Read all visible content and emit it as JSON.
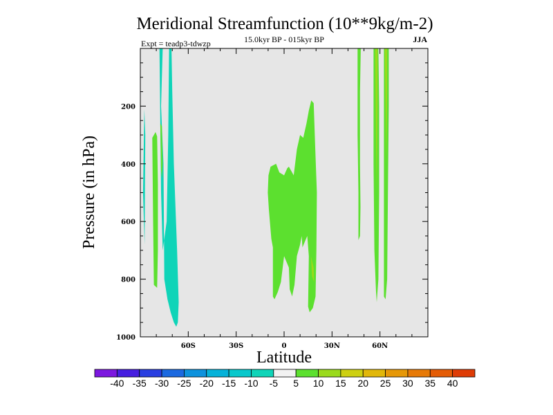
{
  "chart_data": {
    "type": "contour",
    "title": "Meridional Streamfunction (10**9kg/m-2)",
    "subtitle": "15.0kyr BP - 015kyr BP",
    "expt_label": "Expt = teadp3-tdwzp",
    "season": "JJA",
    "xlabel": "Latitude",
    "ylabel": "Pressure (in hPa)",
    "xlim": [
      -90,
      90
    ],
    "ylim": [
      1000,
      0
    ],
    "x_ticks": [
      {
        "value": -60,
        "label": "60S"
      },
      {
        "value": -30,
        "label": "30S"
      },
      {
        "value": 0,
        "label": "0"
      },
      {
        "value": 30,
        "label": "30N"
      },
      {
        "value": 60,
        "label": "60N"
      }
    ],
    "y_ticks": [
      {
        "value": 200,
        "label": "200"
      },
      {
        "value": 400,
        "label": "400"
      },
      {
        "value": 600,
        "label": "600"
      },
      {
        "value": 800,
        "label": "800"
      },
      {
        "value": 1000,
        "label": "1000"
      }
    ],
    "background_color": "#e6e6e6",
    "regions": [
      {
        "name": "sh-polar-strip",
        "level": "-10",
        "color": "#0fd4b8",
        "points": [
          [
            -88.3,
            500
          ],
          [
            -87.5,
            210
          ],
          [
            -86.9,
            300
          ],
          [
            -87.3,
            680
          ]
        ]
      },
      {
        "name": "sh-cell-a",
        "level": "-10",
        "color": "#0fd4b8",
        "points": [
          [
            -78,
            0
          ],
          [
            -76,
            0
          ],
          [
            -77,
            200
          ],
          [
            -75.5,
            400
          ],
          [
            -75,
            800
          ],
          [
            -73,
            870
          ],
          [
            -71,
            915
          ],
          [
            -69,
            950
          ],
          [
            -67.5,
            965
          ],
          [
            -66.5,
            950
          ],
          [
            -66,
            880
          ],
          [
            -67,
            700
          ],
          [
            -69,
            400
          ],
          [
            -70,
            150
          ],
          [
            -70.5,
            0
          ],
          [
            -72,
            0
          ],
          [
            -72.5,
            300
          ],
          [
            -73.5,
            600
          ],
          [
            -76,
            700
          ],
          [
            -77,
            500
          ]
        ]
      },
      {
        "name": "sh-cell-b",
        "level": "5",
        "color": "#5ce02f",
        "points": [
          [
            -82.5,
            310
          ],
          [
            -80.5,
            290
          ],
          [
            -79.5,
            305
          ],
          [
            -79,
            470
          ],
          [
            -79,
            700
          ],
          [
            -79.5,
            830
          ],
          [
            -81.5,
            820
          ],
          [
            -82,
            600
          ]
        ]
      },
      {
        "name": "sh-cell-c",
        "level": "5",
        "color": "#5ce02f",
        "points": [
          [
            -77.5,
            260
          ],
          [
            -76.5,
            270
          ],
          [
            -76,
            400
          ],
          [
            -76.5,
            450
          ],
          [
            -77,
            420
          ]
        ]
      },
      {
        "name": "eq-cell",
        "level": "5",
        "color": "#5ce02f",
        "points": [
          [
            -9.8,
            440
          ],
          [
            -8.5,
            410
          ],
          [
            -5,
            400
          ],
          [
            -3,
            430
          ],
          [
            0,
            440
          ],
          [
            2,
            415
          ],
          [
            3,
            410
          ],
          [
            6,
            440
          ],
          [
            8,
            350
          ],
          [
            10,
            300
          ],
          [
            12,
            310
          ],
          [
            14,
            260
          ],
          [
            15.5,
            215
          ],
          [
            17,
            180
          ],
          [
            18.5,
            190
          ],
          [
            19.5,
            350
          ],
          [
            20.5,
            500
          ],
          [
            20.2,
            700
          ],
          [
            19.7,
            860
          ],
          [
            18,
            900
          ],
          [
            16,
            915
          ],
          [
            15,
            895
          ],
          [
            15.5,
            720
          ],
          [
            14.5,
            650
          ],
          [
            13,
            670
          ],
          [
            11.5,
            690
          ],
          [
            11,
            650
          ],
          [
            10,
            680
          ],
          [
            8,
            720
          ],
          [
            6.5,
            820
          ],
          [
            5,
            860
          ],
          [
            3.5,
            835
          ],
          [
            3,
            760
          ],
          [
            0,
            720
          ],
          [
            -2,
            810
          ],
          [
            -4,
            845
          ],
          [
            -6,
            870
          ],
          [
            -7,
            860
          ],
          [
            -7,
            690
          ],
          [
            -8,
            660
          ],
          [
            -9.5,
            560
          ],
          [
            -10.2,
            500
          ]
        ]
      },
      {
        "name": "eq-cell-yellow",
        "level": "10",
        "color": "#9ada1c",
        "points": [
          [
            16.8,
            720
          ],
          [
            18.5,
            760
          ],
          [
            18.8,
            810
          ],
          [
            17.5,
            790
          ]
        ]
      },
      {
        "name": "nh-strip-a",
        "level": "5",
        "color": "#5ce02f",
        "points": [
          [
            46,
            0
          ],
          [
            48,
            0
          ],
          [
            47.5,
            150
          ],
          [
            47.5,
            400
          ],
          [
            47.8,
            550
          ],
          [
            47.5,
            650
          ],
          [
            46.5,
            665
          ],
          [
            46.5,
            500
          ],
          [
            46,
            300
          ]
        ]
      },
      {
        "name": "nh-strip-b",
        "level": "5",
        "color": "#5ce02f",
        "points": [
          [
            56,
            0
          ],
          [
            59,
            0
          ],
          [
            59.5,
            200
          ],
          [
            59.5,
            500
          ],
          [
            59,
            800
          ],
          [
            58,
            880
          ],
          [
            57.5,
            840
          ],
          [
            56.5,
            700
          ],
          [
            56,
            400
          ]
        ]
      },
      {
        "name": "nh-strip-b-yellow",
        "level": "10",
        "color": "#9ada1c",
        "points": [
          [
            57,
            0
          ],
          [
            58.5,
            0
          ],
          [
            58.5,
            200
          ],
          [
            58,
            500
          ],
          [
            57.5,
            300
          ]
        ]
      },
      {
        "name": "nh-strip-c",
        "level": "5",
        "color": "#5ce02f",
        "points": [
          [
            62.5,
            0
          ],
          [
            65.5,
            0
          ],
          [
            65.5,
            200
          ],
          [
            65,
            500
          ],
          [
            64.5,
            800
          ],
          [
            63.5,
            870
          ],
          [
            62.5,
            860
          ],
          [
            62.5,
            600
          ],
          [
            62.5,
            300
          ]
        ]
      },
      {
        "name": "nh-strip-c-yellow",
        "level": "10",
        "color": "#9ada1c",
        "points": [
          [
            63,
            0
          ],
          [
            64.5,
            0
          ],
          [
            64.5,
            150
          ],
          [
            64,
            400
          ],
          [
            63.5,
            200
          ]
        ]
      }
    ],
    "colorbar": {
      "colors": [
        "#7c17df",
        "#461ee0",
        "#2a3fe1",
        "#1b69e0",
        "#0d92dd",
        "#05b2d9",
        "#08c8cc",
        "#0fd4b8",
        "#f2f2f2",
        "#5ce02f",
        "#9ada1c",
        "#cdd012",
        "#e1b70a",
        "#e69808",
        "#e77a07",
        "#e45c06",
        "#de3c06"
      ],
      "labels": [
        "-40",
        "-35",
        "-30",
        "-25",
        "-20",
        "-15",
        "-10",
        "-5",
        "5",
        "10",
        "15",
        "20",
        "25",
        "30",
        "35",
        "40"
      ]
    }
  }
}
